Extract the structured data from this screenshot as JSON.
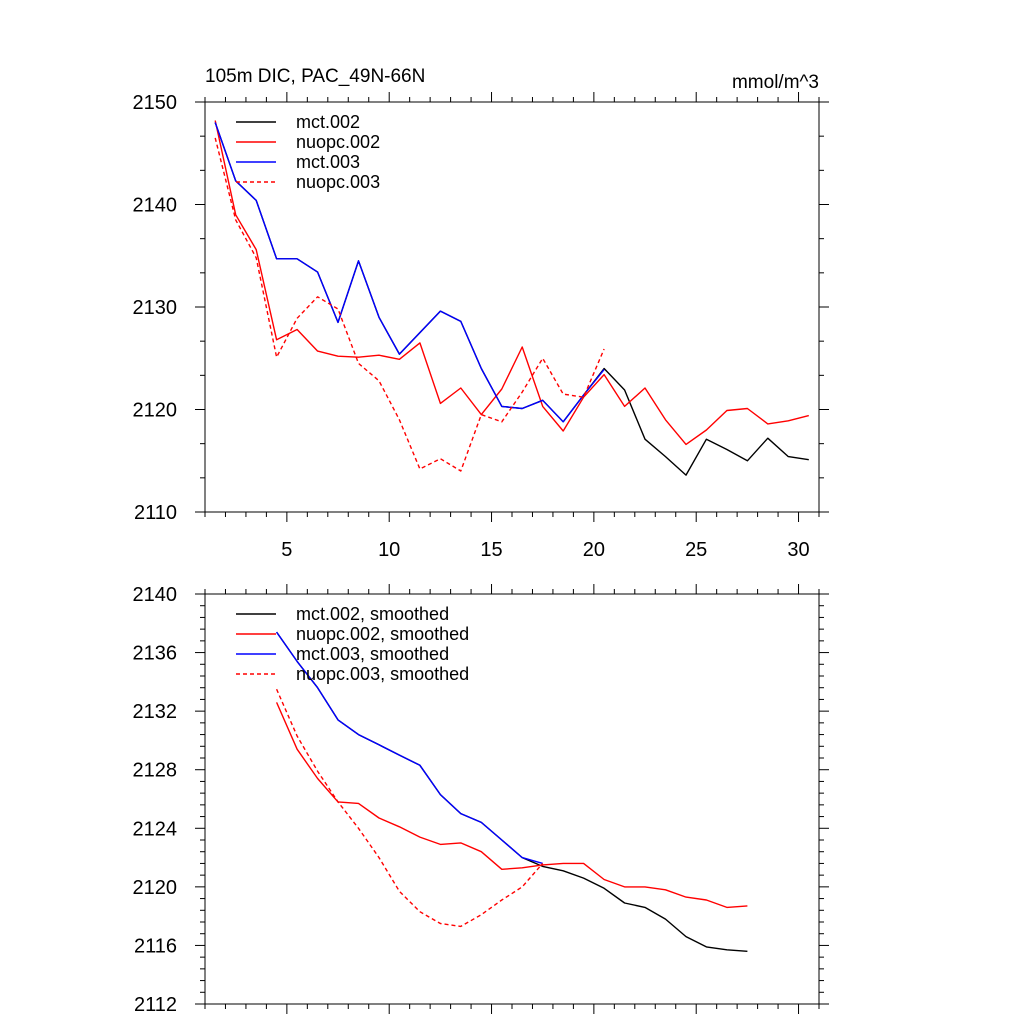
{
  "chart_data": [
    {
      "type": "line",
      "title": "105m DIC, PAC_49N-66N",
      "units": "mmol/m^3",
      "xlabel": "",
      "ylabel": "",
      "xlim": [
        1,
        31
      ],
      "ylim": [
        2110,
        2150
      ],
      "xticks": [
        5,
        10,
        15,
        20,
        25,
        30
      ],
      "yticks": [
        2110,
        2120,
        2130,
        2140,
        2150
      ],
      "legend_position": "top-left",
      "series": [
        {
          "name": "mct.002",
          "color": "#000000",
          "dash": "solid",
          "x": [
            1.5,
            2.5,
            3.5,
            4.5,
            5.5,
            6.5,
            7.5,
            8.5,
            9.5,
            10.5,
            11.5,
            12.5,
            13.5,
            14.5,
            15.5,
            16.5,
            17.5,
            18.5,
            19.5,
            20.5,
            21.5,
            22.5,
            23.5,
            24.5,
            25.5,
            26.5,
            27.5,
            28.5,
            29.5,
            30.5
          ],
          "y": [
            2148.0,
            2142.3,
            2140.4,
            2134.7,
            2134.7,
            2133.4,
            2128.5,
            2134.5,
            2129.0,
            2125.4,
            2127.5,
            2129.6,
            2128.6,
            2124.0,
            2120.3,
            2120.1,
            2120.9,
            2118.8,
            2121.4,
            2124.0,
            2121.9,
            2117.1,
            2115.4,
            2113.6,
            2117.1,
            2116.1,
            2115.0,
            2117.2,
            2115.4,
            2115.1
          ]
        },
        {
          "name": "nuopc.002",
          "color": "#ff0000",
          "dash": "solid",
          "x": [
            1.5,
            2.5,
            3.5,
            4.5,
            5.5,
            6.5,
            7.5,
            8.5,
            9.5,
            10.5,
            11.5,
            12.5,
            13.5,
            14.5,
            15.5,
            16.5,
            17.5,
            18.5,
            19.5,
            20.5,
            21.5,
            22.5,
            23.5,
            24.5,
            25.5,
            26.5,
            27.5,
            28.5,
            29.5,
            30.5
          ],
          "y": [
            2148.2,
            2139.0,
            2135.6,
            2126.8,
            2127.8,
            2125.7,
            2125.2,
            2125.1,
            2125.3,
            2124.9,
            2126.5,
            2120.6,
            2122.1,
            2119.5,
            2122.0,
            2126.1,
            2120.3,
            2117.9,
            2121.2,
            2123.4,
            2120.3,
            2122.1,
            2119.0,
            2116.6,
            2118.0,
            2119.9,
            2120.1,
            2118.6,
            2118.9,
            2119.4
          ]
        },
        {
          "name": "mct.003",
          "color": "#0000ff",
          "dash": "solid",
          "x": [
            1.5,
            2.5,
            3.5,
            4.5,
            5.5,
            6.5,
            7.5,
            8.5,
            9.5,
            10.5,
            11.5,
            12.5,
            13.5,
            14.5,
            15.5,
            16.5,
            17.5,
            18.5,
            19.5,
            20.5
          ],
          "y": [
            2148.0,
            2142.3,
            2140.4,
            2134.7,
            2134.7,
            2133.4,
            2128.5,
            2134.5,
            2129.0,
            2125.4,
            2127.5,
            2129.6,
            2128.6,
            2124.0,
            2120.3,
            2120.1,
            2120.9,
            2118.8,
            2121.4,
            2123.9
          ]
        },
        {
          "name": "nuopc.003",
          "color": "#ff0000",
          "dash": "dashed",
          "x": [
            1.5,
            2.5,
            3.5,
            4.5,
            5.5,
            6.5,
            7.5,
            8.5,
            9.5,
            10.5,
            11.5,
            12.5,
            13.5,
            14.5,
            15.5,
            16.5,
            17.5,
            18.5,
            19.5,
            20.5
          ],
          "y": [
            2146.5,
            2138.5,
            2134.8,
            2125.1,
            2128.9,
            2131.0,
            2129.8,
            2124.5,
            2122.8,
            2119.0,
            2114.2,
            2115.2,
            2114.0,
            2119.5,
            2118.8,
            2121.7,
            2125.0,
            2121.5,
            2121.2,
            2125.9
          ]
        }
      ]
    },
    {
      "type": "line",
      "title": "",
      "units": "",
      "xlabel": "",
      "ylabel": "",
      "xlim": [
        1,
        31
      ],
      "ylim": [
        2112,
        2140
      ],
      "xticks": [
        5,
        10,
        15,
        20,
        25,
        30
      ],
      "yticks": [
        2112,
        2116,
        2120,
        2124,
        2128,
        2132,
        2136,
        2140
      ],
      "legend_position": "top-left",
      "series": [
        {
          "name": "mct.002, smoothed",
          "color": "#000000",
          "dash": "solid",
          "x": [
            4.5,
            5.5,
            6.5,
            7.5,
            8.5,
            9.5,
            10.5,
            11.5,
            12.5,
            13.5,
            14.5,
            15.5,
            16.5,
            17.5,
            18.5,
            19.5,
            20.5,
            21.5,
            22.5,
            23.5,
            24.5,
            25.5,
            26.5,
            27.5
          ],
          "y": [
            2137.4,
            2135.4,
            2133.6,
            2131.4,
            2130.4,
            2129.7,
            2129.0,
            2128.3,
            2126.3,
            2125.0,
            2124.4,
            2123.2,
            2122.0,
            2121.4,
            2121.1,
            2120.6,
            2119.9,
            2118.9,
            2118.6,
            2117.8,
            2116.6,
            2115.9,
            2115.7,
            2115.6
          ]
        },
        {
          "name": "nuopc.002, smoothed",
          "color": "#ff0000",
          "dash": "solid",
          "x": [
            4.5,
            5.5,
            6.5,
            7.5,
            8.5,
            9.5,
            10.5,
            11.5,
            12.5,
            13.5,
            14.5,
            15.5,
            16.5,
            17.5,
            18.5,
            19.5,
            20.5,
            21.5,
            22.5,
            23.5,
            24.5,
            25.5,
            26.5,
            27.5
          ],
          "y": [
            2132.6,
            2129.4,
            2127.4,
            2125.8,
            2125.7,
            2124.7,
            2124.1,
            2123.4,
            2122.9,
            2123.0,
            2122.4,
            2121.2,
            2121.3,
            2121.5,
            2121.6,
            2121.6,
            2120.5,
            2120.0,
            2120.0,
            2119.8,
            2119.3,
            2119.1,
            2118.6,
            2118.7
          ]
        },
        {
          "name": "mct.003, smoothed",
          "color": "#0000ff",
          "dash": "solid",
          "x": [
            4.5,
            5.5,
            6.5,
            7.5,
            8.5,
            9.5,
            10.5,
            11.5,
            12.5,
            13.5,
            14.5,
            15.5,
            16.5,
            17.5
          ],
          "y": [
            2137.4,
            2135.4,
            2133.6,
            2131.4,
            2130.4,
            2129.7,
            2129.0,
            2128.3,
            2126.3,
            2125.0,
            2124.4,
            2123.2,
            2122.0,
            2121.6
          ]
        },
        {
          "name": "nuopc.003, smoothed",
          "color": "#ff0000",
          "dash": "dashed",
          "x": [
            4.5,
            5.5,
            6.5,
            7.5,
            8.5,
            9.5,
            10.5,
            11.5,
            12.5,
            13.5,
            14.5,
            15.5,
            16.5,
            17.5
          ],
          "y": [
            2133.5,
            2130.3,
            2127.9,
            2125.8,
            2124.0,
            2122.0,
            2119.7,
            2118.3,
            2117.5,
            2117.3,
            2118.1,
            2119.1,
            2120.0,
            2121.6
          ]
        }
      ]
    }
  ]
}
